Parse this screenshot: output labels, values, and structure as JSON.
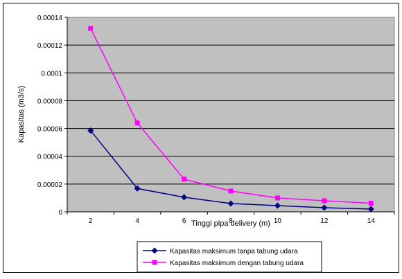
{
  "chart_data": {
    "type": "line",
    "xlabel": "Tinggi pipa delivery (m)",
    "ylabel": "Kapasitas (m3/s)",
    "x": [
      2,
      4,
      6,
      8,
      10,
      12,
      14
    ],
    "x_tick_labels": [
      "2",
      "4",
      "6",
      "8",
      "10",
      "12",
      "14"
    ],
    "ylim": [
      0,
      0.00014
    ],
    "y_tick_labels": [
      "0",
      "0.00002",
      "0.00004",
      "0.00006",
      "0.00008",
      "0.0001",
      "0.00012",
      "0.00014"
    ],
    "grid": true,
    "legend_position": "bottom",
    "plot_background": "#c0c0c0",
    "series": [
      {
        "name": "Kapasitas maksimum tanpa tabung udara",
        "color": "#000080",
        "marker": "diamond",
        "values": [
          5.85e-05,
          1.68e-05,
          1.05e-05,
          6e-06,
          4.5e-06,
          3e-06,
          2e-06
        ]
      },
      {
        "name": "Kapasitas maksimum dengan tabung udara",
        "color": "#ff00ff",
        "marker": "square",
        "values": [
          0.000132,
          6.4e-05,
          2.35e-05,
          1.5e-05,
          1e-05,
          8e-06,
          6.2e-06
        ]
      }
    ]
  }
}
